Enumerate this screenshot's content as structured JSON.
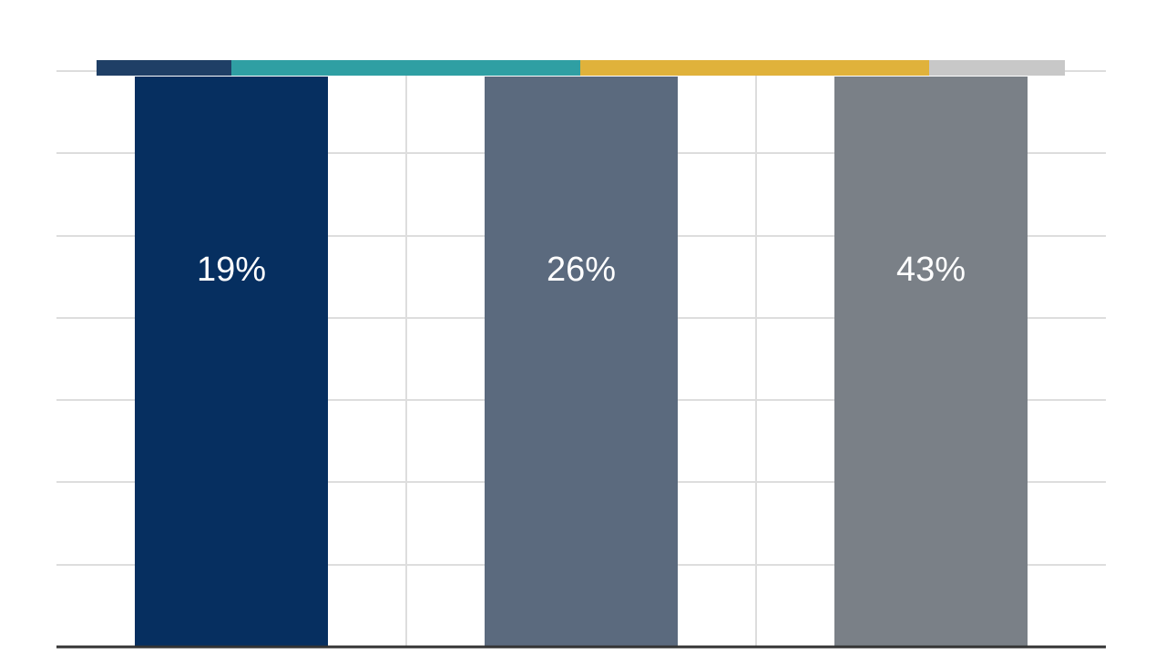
{
  "chart_data": {
    "type": "bar",
    "categories": [
      "",
      "",
      ""
    ],
    "values": [
      19,
      26,
      43
    ],
    "data_labels": [
      "19%",
      "26%",
      "43%"
    ],
    "bar_colors": [
      "#062f60",
      "#5b6a7e",
      "#7a8087"
    ],
    "top_strip_colors": [
      "#1f3f66",
      "#2f9fa3",
      "#e0b23b",
      "#c8c8c8"
    ],
    "gridline_color": "#dddddd",
    "baseline_color": "#333333",
    "grid": true,
    "legend": "none",
    "title": "",
    "xlabel": "",
    "ylabel": ""
  }
}
